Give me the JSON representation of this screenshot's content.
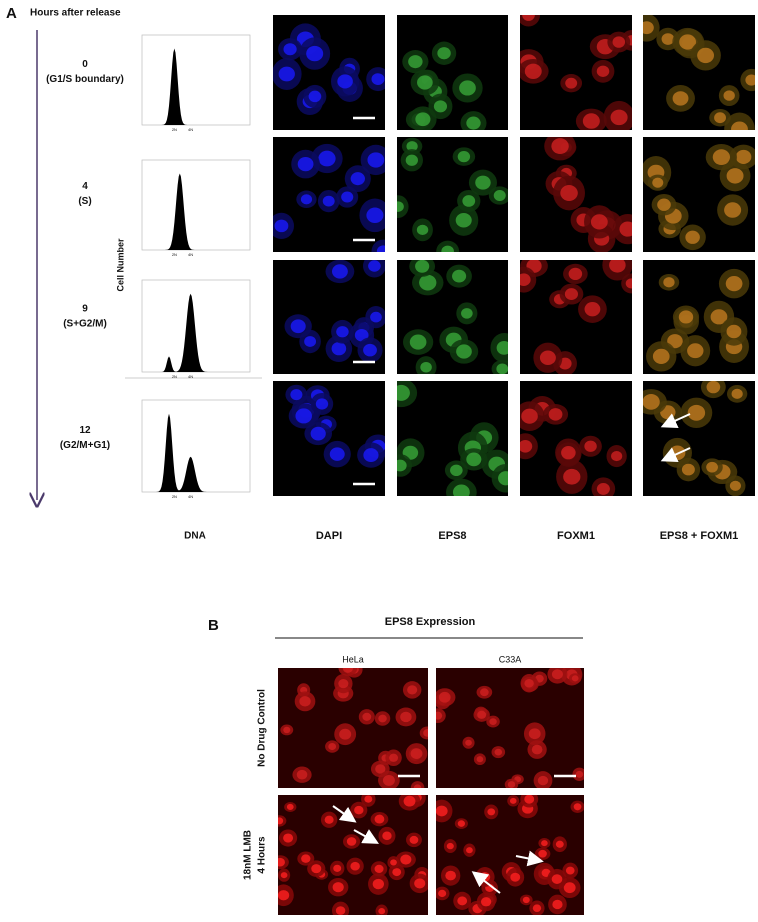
{
  "panel_a": {
    "label": "A",
    "time_header": "Hours after release",
    "rows": [
      {
        "time": "0",
        "phase": "(G1/S boundary)"
      },
      {
        "time": "4",
        "phase": "(S)"
      },
      {
        "time": "9",
        "phase": "(S+G2/M)"
      },
      {
        "time": "12",
        "phase": "(G2/M+G1)"
      }
    ],
    "y_axis_label": "Cell Number",
    "x_axis_label": "DNA",
    "histogram_ticks": [
      "2N",
      "4N"
    ],
    "columns": [
      "DAPI",
      "EPS8",
      "FOXM1",
      "EPS8 + FOXM1"
    ]
  },
  "panel_b": {
    "label": "B",
    "title": "EPS8 Expression",
    "columns": [
      "HeLa",
      "C33A"
    ],
    "rows": [
      {
        "lines": [
          "No Drug Control"
        ]
      },
      {
        "lines": [
          "18nM LMB",
          "4 Hours"
        ]
      }
    ]
  }
}
